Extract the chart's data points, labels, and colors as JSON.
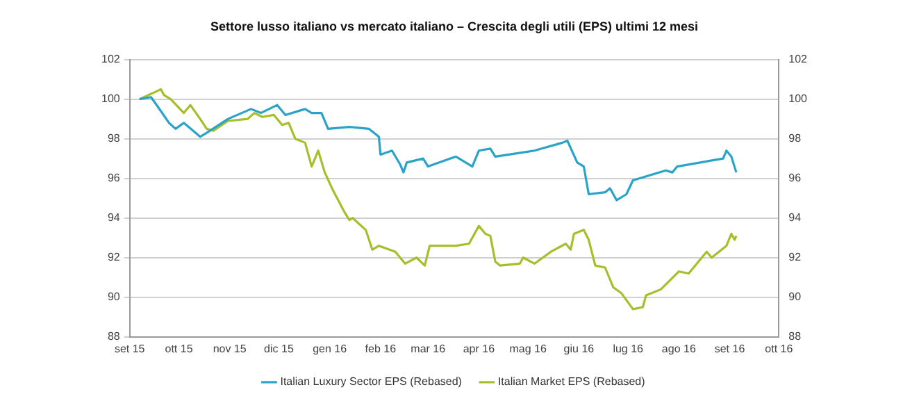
{
  "chart_data": {
    "type": "line",
    "title": "Settore lusso italiano vs mercato italiano – Crescita degli utili (EPS) ultimi 12 mesi",
    "series": [
      {
        "name": "Italian Luxury Sector EPS (Rebased)",
        "color": "#29a3c7",
        "x": [
          "2015-09-07",
          "2015-09-14",
          "2015-09-20",
          "2015-09-25",
          "2015-09-29",
          "2015-10-04",
          "2015-10-14",
          "2015-10-18",
          "2015-10-31",
          "2015-11-14",
          "2015-11-20",
          "2015-11-30",
          "2015-12-05",
          "2015-12-17",
          "2015-12-21",
          "2015-12-27",
          "2015-12-31",
          "2016-01-13",
          "2016-01-25",
          "2016-01-31",
          "2016-02-01",
          "2016-02-08",
          "2016-02-13",
          "2016-02-15",
          "2016-02-17",
          "2016-02-27",
          "2016-03-01",
          "2016-03-18",
          "2016-03-28",
          "2016-04-01",
          "2016-04-08",
          "2016-04-11",
          "2016-05-05",
          "2016-05-09",
          "2016-05-22",
          "2016-05-25",
          "2016-05-31",
          "2016-06-04",
          "2016-06-07",
          "2016-06-17",
          "2016-06-20",
          "2016-06-24",
          "2016-06-30",
          "2016-07-04",
          "2016-07-24",
          "2016-07-28",
          "2016-07-31",
          "2016-08-28",
          "2016-08-30",
          "2016-09-02",
          "2016-09-05"
        ],
        "values": [
          100.0,
          100.1,
          99.4,
          98.8,
          98.5,
          98.8,
          98.1,
          98.3,
          99.0,
          99.5,
          99.3,
          99.7,
          99.2,
          99.5,
          99.3,
          99.3,
          98.5,
          98.6,
          98.5,
          98.1,
          97.2,
          97.4,
          96.7,
          96.3,
          96.8,
          97.0,
          96.6,
          97.1,
          96.6,
          97.4,
          97.5,
          97.1,
          97.4,
          97.5,
          97.8,
          97.9,
          96.8,
          96.6,
          95.2,
          95.3,
          95.5,
          94.9,
          95.2,
          95.9,
          96.4,
          96.3,
          96.6,
          97.0,
          97.4,
          97.1,
          96.3
        ]
      },
      {
        "name": "Italian Market EPS (Rebased)",
        "color": "#a5bf2b",
        "x": [
          "2015-09-07",
          "2015-09-15",
          "2015-09-20",
          "2015-09-22",
          "2015-09-26",
          "2015-10-04",
          "2015-10-08",
          "2015-10-14",
          "2015-10-18",
          "2015-10-22",
          "2015-10-31",
          "2015-11-12",
          "2015-11-16",
          "2015-11-21",
          "2015-11-28",
          "2015-12-03",
          "2015-12-07",
          "2015-12-11",
          "2015-12-17",
          "2015-12-21",
          "2015-12-25",
          "2015-12-29",
          "2016-01-03",
          "2016-01-10",
          "2016-01-13",
          "2016-01-15",
          "2016-01-23",
          "2016-01-27",
          "2016-01-31",
          "2016-02-10",
          "2016-02-16",
          "2016-02-23",
          "2016-02-28",
          "2016-03-02",
          "2016-03-18",
          "2016-03-26",
          "2016-04-01",
          "2016-04-05",
          "2016-04-08",
          "2016-04-11",
          "2016-04-14",
          "2016-04-26",
          "2016-04-28",
          "2016-05-05",
          "2016-05-15",
          "2016-05-24",
          "2016-05-27",
          "2016-05-29",
          "2016-06-04",
          "2016-06-07",
          "2016-06-11",
          "2016-06-17",
          "2016-06-22",
          "2016-06-27",
          "2016-07-04",
          "2016-07-10",
          "2016-07-12",
          "2016-07-21",
          "2016-08-01",
          "2016-08-07",
          "2016-08-14",
          "2016-08-18",
          "2016-08-21",
          "2016-08-30",
          "2016-09-02",
          "2016-09-04",
          "2016-09-05"
        ],
        "values": [
          100.0,
          100.3,
          100.5,
          100.2,
          100.0,
          99.3,
          99.7,
          99.0,
          98.5,
          98.4,
          98.9,
          99.0,
          99.3,
          99.1,
          99.2,
          98.7,
          98.8,
          98.0,
          97.8,
          96.6,
          97.4,
          96.3,
          95.4,
          94.3,
          93.9,
          94.0,
          93.4,
          92.4,
          92.6,
          92.3,
          91.7,
          92.0,
          91.6,
          92.6,
          92.6,
          92.7,
          93.6,
          93.2,
          93.1,
          91.8,
          91.6,
          91.7,
          92.0,
          91.7,
          92.3,
          92.7,
          92.4,
          93.2,
          93.4,
          92.9,
          91.6,
          91.5,
          90.5,
          90.2,
          89.4,
          89.5,
          90.1,
          90.4,
          91.3,
          91.2,
          91.9,
          92.3,
          92.0,
          92.6,
          93.2,
          92.9,
          93.1
        ]
      }
    ],
    "xlim": [
      "2015-09-01",
      "2016-10-01"
    ],
    "xticks": [
      {
        "value": "2015-09-01",
        "label": "set 15"
      },
      {
        "value": "2015-10-01",
        "label": "ott 15"
      },
      {
        "value": "2015-11-01",
        "label": "nov 15"
      },
      {
        "value": "2015-12-01",
        "label": "dic 15"
      },
      {
        "value": "2016-01-01",
        "label": "gen 16"
      },
      {
        "value": "2016-02-01",
        "label": "feb 16"
      },
      {
        "value": "2016-03-01",
        "label": "mar 16"
      },
      {
        "value": "2016-04-01",
        "label": "apr 16"
      },
      {
        "value": "2016-05-01",
        "label": "mag 16"
      },
      {
        "value": "2016-06-01",
        "label": "giu 16"
      },
      {
        "value": "2016-07-01",
        "label": "lug 16"
      },
      {
        "value": "2016-08-01",
        "label": "ago 16"
      },
      {
        "value": "2016-09-01",
        "label": "set 16"
      },
      {
        "value": "2016-10-01",
        "label": "ott 16"
      }
    ],
    "ylim": [
      88,
      102
    ],
    "yticks": [
      88,
      90,
      92,
      94,
      96,
      98,
      100,
      102
    ],
    "y2lim": [
      88,
      102
    ],
    "y2ticks": [
      88,
      90,
      92,
      94,
      96,
      98,
      100,
      102
    ],
    "grid": "y",
    "legend": "bottom",
    "marker": "none",
    "line_style": "solid"
  }
}
